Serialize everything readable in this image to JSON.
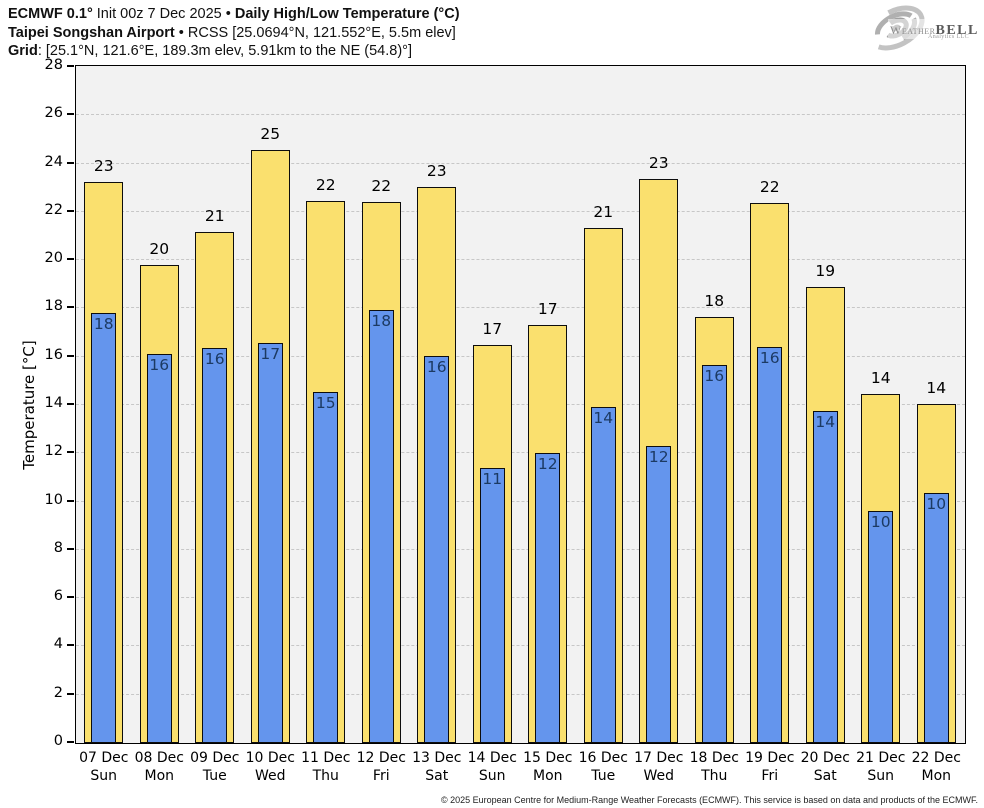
{
  "header": {
    "line1_bold1": "ECMWF 0.1°",
    "line1_regular": " Init 00z 7 Dec 2025 • ",
    "line1_bold2": "Daily High/Low Temperature (°C)",
    "line2_bold": "Taipei Songshan Airport",
    "line2_regular": " • RCSS [25.0694°N, 121.552°E, 5.5m elev]",
    "line3_bold": "Grid",
    "line3_regular": ": [25.1°N, 121.6°E, 189.3m elev, 5.91km to the NE (54.8)°]"
  },
  "logo": {
    "weather": "Weather",
    "bell": "BELL",
    "sub": "Analytics LLC"
  },
  "chart_data": {
    "type": "bar",
    "title": "ECMWF 0.1° Init 00z 7 Dec 2025 • Daily High/Low Temperature (°C)",
    "subtitle": "Taipei Songshan Airport • RCSS [25.0694°N, 121.552°E, 5.5m elev]",
    "grid_info": "Grid: [25.1°N, 121.6°E, 189.3m elev, 5.91km to the NE (54.8)°]",
    "ylabel": "Temperature [°C]",
    "ylim": [
      0,
      28
    ],
    "ytick_step": 2,
    "grid": "horizontal dashed lines every 2°C",
    "legend_position": "none",
    "categories": [
      "07 Dec",
      "08 Dec",
      "09 Dec",
      "10 Dec",
      "11 Dec",
      "12 Dec",
      "13 Dec",
      "14 Dec",
      "15 Dec",
      "16 Dec",
      "17 Dec",
      "18 Dec",
      "19 Dec",
      "20 Dec",
      "21 Dec",
      "22 Dec"
    ],
    "weekdays": [
      "Sun",
      "Mon",
      "Tue",
      "Wed",
      "Thu",
      "Fri",
      "Sat",
      "Sun",
      "Mon",
      "Tue",
      "Wed",
      "Thu",
      "Fri",
      "Sat",
      "Sun",
      "Mon"
    ],
    "series": [
      {
        "name": "Daily High",
        "color": "#FAE06E",
        "values": [
          23.25,
          19.8,
          21.15,
          24.55,
          22.45,
          22.4,
          23.05,
          16.5,
          17.3,
          21.35,
          23.35,
          17.65,
          22.35,
          18.9,
          14.45,
          14.05
        ],
        "labels": [
          "23",
          "20",
          "21",
          "25",
          "22",
          "22",
          "23",
          "17",
          "17",
          "21",
          "23",
          "18",
          "22",
          "19",
          "14",
          "14"
        ]
      },
      {
        "name": "Daily Low",
        "color": "#6495ED",
        "values": [
          17.8,
          16.1,
          16.35,
          16.55,
          14.55,
          17.95,
          16.05,
          11.4,
          12.0,
          13.9,
          12.3,
          15.65,
          16.4,
          13.75,
          9.6,
          10.35
        ],
        "labels": [
          "18",
          "16",
          "16",
          "17",
          "15",
          "18",
          "16",
          "11",
          "12",
          "14",
          "12",
          "16",
          "16",
          "14",
          "10",
          "10"
        ]
      }
    ]
  },
  "colors": {
    "high_bar": "#FAE06E",
    "low_bar": "#6495ED",
    "plot_bg": "#F2F2F2",
    "gridline": "#C7C7C7",
    "bar_border": "#0D0D0D",
    "low_label_text": "#1C3A63"
  },
  "footer": {
    "copyright": "© 2025 European Centre for Medium-Range Weather Forecasts (ECMWF). This service is based on data and products of the ECMWF."
  }
}
